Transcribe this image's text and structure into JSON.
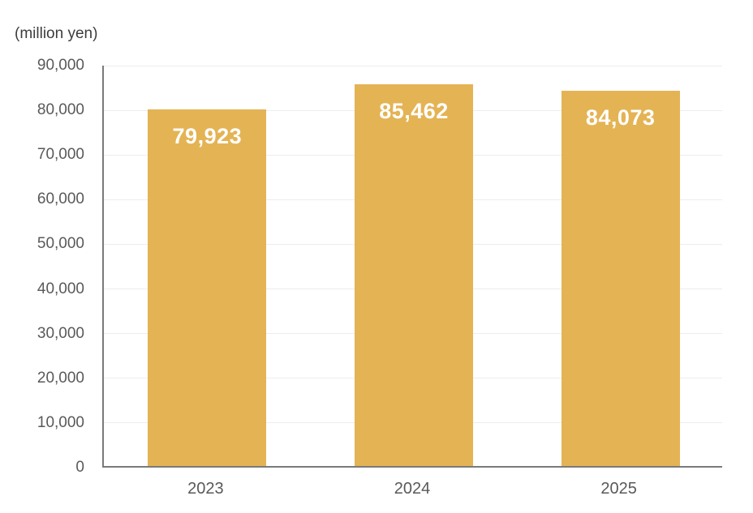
{
  "chart_data": {
    "type": "bar",
    "title": "(million yen)",
    "categories": [
      "2023",
      "2024",
      "2025"
    ],
    "values": [
      79923,
      85462,
      84073
    ],
    "value_labels": [
      "79,923",
      "85,462",
      "84,073"
    ],
    "xlabel": "",
    "ylabel": "(million yen)",
    "ylim": [
      0,
      90000
    ],
    "ytick_step": 10000,
    "ytick_labels": [
      "0",
      "10,000",
      "20,000",
      "30,000",
      "40,000",
      "50,000",
      "60,000",
      "70,000",
      "80,000",
      "90,000"
    ],
    "grid": true,
    "legend_position": "none",
    "colors": {
      "bar": "#e4b354",
      "bar_label": "#ffffff",
      "axis": "#7a7a7a",
      "gridline": "#ededed",
      "tick_text": "#595959",
      "title_text": "#3d3d3d",
      "background": "#ffffff"
    }
  }
}
